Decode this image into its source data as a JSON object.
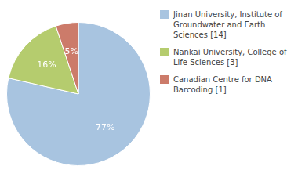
{
  "chart_data": {
    "type": "pie",
    "categories": [
      "Jinan University, Institute of\nGroundwater and Earth Sciences [14]",
      "Nankai University, College of\nLife Sciences [3]",
      "Canadian Centre for DNA\nBarcoding [1]"
    ],
    "values": [
      77,
      16,
      5
    ],
    "value_labels": [
      "77%",
      "16%",
      "5%"
    ],
    "colors": [
      "#a8c4e0",
      "#b5cc6e",
      "#cc7b6a"
    ],
    "data_labels": true,
    "legend": "right"
  }
}
